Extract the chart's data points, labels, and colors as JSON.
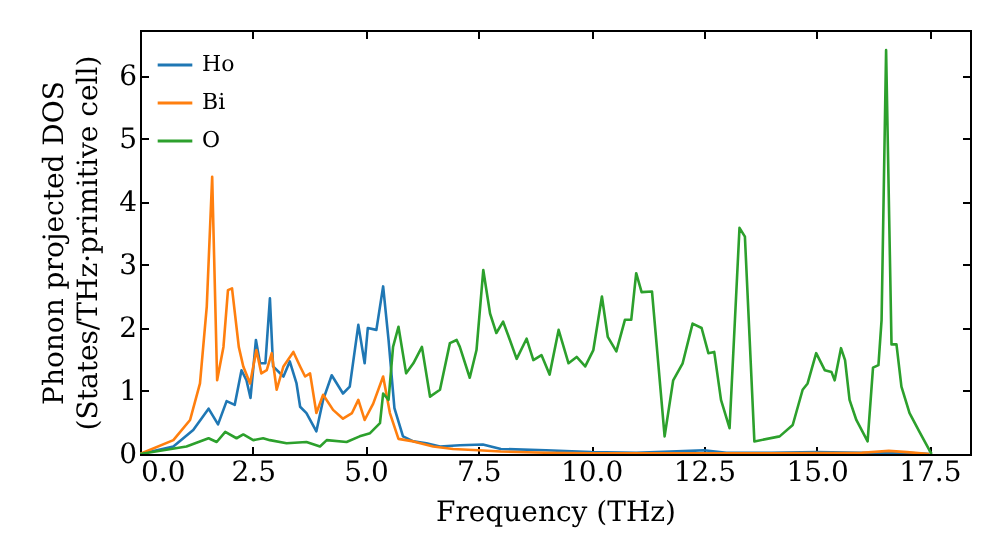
{
  "chart_data": {
    "type": "line",
    "xlabel": "Frequency (THz)",
    "ylabel": "Phonon projected DOS\n(States/THz·primitive cell)",
    "xlim": [
      0,
      18.4
    ],
    "ylim": [
      0,
      6.73
    ],
    "xticks": [
      {
        "value": 0,
        "label": "0.0"
      },
      {
        "value": 2.5,
        "label": "2.5"
      },
      {
        "value": 5,
        "label": "5.0"
      },
      {
        "value": 7.5,
        "label": "7.5"
      },
      {
        "value": 10,
        "label": "10.0"
      },
      {
        "value": 12.5,
        "label": "12.5"
      },
      {
        "value": 15,
        "label": "15.0"
      },
      {
        "value": 17.5,
        "label": "17.5"
      }
    ],
    "yticks": [
      0,
      1,
      2,
      3,
      4,
      5,
      6
    ],
    "legend": "top left",
    "grid": false,
    "marker": "none",
    "line_style": "solid",
    "series": [
      {
        "name": "Ho",
        "color": "#1f77b4",
        "x": [
          0,
          0.74,
          1.18,
          1.52,
          1.73,
          1.92,
          2.1,
          2.25,
          2.36,
          2.45,
          2.57,
          2.66,
          2.78,
          2.88,
          2.95,
          3.18,
          3.32,
          3.47,
          3.55,
          3.69,
          3.91,
          4.06,
          4.25,
          4.5,
          4.65,
          4.84,
          4.98,
          5.05,
          5.24,
          5.39,
          5.51,
          5.64,
          5.83,
          6.06,
          6.35,
          6.65,
          7.09,
          7.6,
          8,
          9,
          10,
          11,
          12.2,
          12.5,
          13,
          14,
          15,
          16,
          17,
          17.5
        ],
        "values": [
          0,
          0.12,
          0.38,
          0.72,
          0.47,
          0.84,
          0.78,
          1.33,
          1.17,
          0.89,
          1.81,
          1.44,
          1.44,
          2.47,
          1.39,
          1.23,
          1.47,
          1.12,
          0.75,
          0.65,
          0.36,
          0.86,
          1.25,
          0.96,
          1.07,
          2.05,
          1.44,
          2,
          1.97,
          2.66,
          1.81,
          0.73,
          0.28,
          0.2,
          0.17,
          0.12,
          0.14,
          0.15,
          0.08,
          0.06,
          0.03,
          0.02,
          0.05,
          0.06,
          0.02,
          0.02,
          0.03,
          0.02,
          0.02,
          0
        ]
      },
      {
        "name": "Bi",
        "color": "#ff7f0e",
        "x": [
          0,
          0.74,
          1.11,
          1.33,
          1.48,
          1.6,
          1.71,
          1.85,
          1.95,
          2.04,
          2.19,
          2.29,
          2.44,
          2.58,
          2.69,
          2.81,
          2.92,
          3.03,
          3.18,
          3.4,
          3.55,
          3.66,
          3.77,
          3.91,
          4.06,
          4.28,
          4.5,
          4.7,
          4.84,
          4.98,
          5.17,
          5.39,
          5.54,
          5.73,
          6.06,
          6.5,
          6.94,
          7.5,
          8,
          9,
          10,
          12,
          14,
          16,
          16.6,
          17,
          17.5
        ],
        "values": [
          0,
          0.22,
          0.54,
          1.12,
          2.34,
          4.4,
          1.17,
          1.7,
          2.6,
          2.63,
          1.7,
          1.39,
          1.12,
          1.65,
          1.28,
          1.33,
          1.6,
          1.02,
          1.39,
          1.62,
          1.39,
          1.23,
          1.28,
          0.65,
          0.94,
          0.7,
          0.56,
          0.65,
          0.86,
          0.54,
          0.8,
          1.23,
          0.65,
          0.24,
          0.2,
          0.12,
          0.08,
          0.06,
          0.04,
          0.02,
          0.01,
          0.01,
          0.01,
          0.02,
          0.05,
          0.03,
          0
        ]
      },
      {
        "name": "O",
        "color": "#2ca02c",
        "x": [
          0,
          1.03,
          1.52,
          1.7,
          1.89,
          2.14,
          2.29,
          2.51,
          2.73,
          2.88,
          3.25,
          3.69,
          3.99,
          4.14,
          4.58,
          4.87,
          5.1,
          5.32,
          5.39,
          5.51,
          5.61,
          5.73,
          5.9,
          6.06,
          6.25,
          6.43,
          6.65,
          6.87,
          7.02,
          7.09,
          7.31,
          7.46,
          7.61,
          7.76,
          7.9,
          8.05,
          8.2,
          8.35,
          8.57,
          8.72,
          8.9,
          9.08,
          9.28,
          9.5,
          9.68,
          9.87,
          10.05,
          10.24,
          10.37,
          10.56,
          10.75,
          10.89,
          11,
          11.12,
          11.35,
          11.63,
          11.82,
          12.03,
          12.25,
          12.45,
          12.6,
          12.73,
          12.88,
          13.07,
          13.29,
          13.41,
          13.62,
          14.18,
          14.47,
          14.69,
          14.8,
          14.99,
          15.18,
          15.33,
          15.4,
          15.54,
          15.63,
          15.73,
          15.88,
          16.13,
          16.25,
          16.37,
          16.44,
          16.54,
          16.66,
          16.77,
          16.88,
          17.06,
          17.28,
          17.5,
          17.55
        ],
        "values": [
          0,
          0.12,
          0.25,
          0.19,
          0.35,
          0.25,
          0.31,
          0.22,
          0.25,
          0.22,
          0.17,
          0.19,
          0.12,
          0.22,
          0.19,
          0.28,
          0.33,
          0.49,
          0.96,
          0.86,
          1.7,
          2.02,
          1.28,
          1.44,
          1.7,
          0.91,
          1.02,
          1.76,
          1.81,
          1.7,
          1.21,
          1.65,
          2.92,
          2.23,
          1.92,
          2.1,
          1.81,
          1.51,
          1.83,
          1.49,
          1.57,
          1.26,
          1.97,
          1.44,
          1.54,
          1.39,
          1.65,
          2.5,
          1.86,
          1.63,
          2.13,
          2.13,
          2.87,
          2.57,
          2.58,
          0.28,
          1.17,
          1.44,
          2.07,
          2,
          1.6,
          1.62,
          0.86,
          0.41,
          3.59,
          3.45,
          0.2,
          0.28,
          0.46,
          1.02,
          1.12,
          1.6,
          1.33,
          1.3,
          1.17,
          1.68,
          1.49,
          0.86,
          0.54,
          0.2,
          1.37,
          1.41,
          2.13,
          6.41,
          1.74,
          1.74,
          1.07,
          0.65,
          0.35,
          0.06,
          0
        ]
      }
    ]
  }
}
